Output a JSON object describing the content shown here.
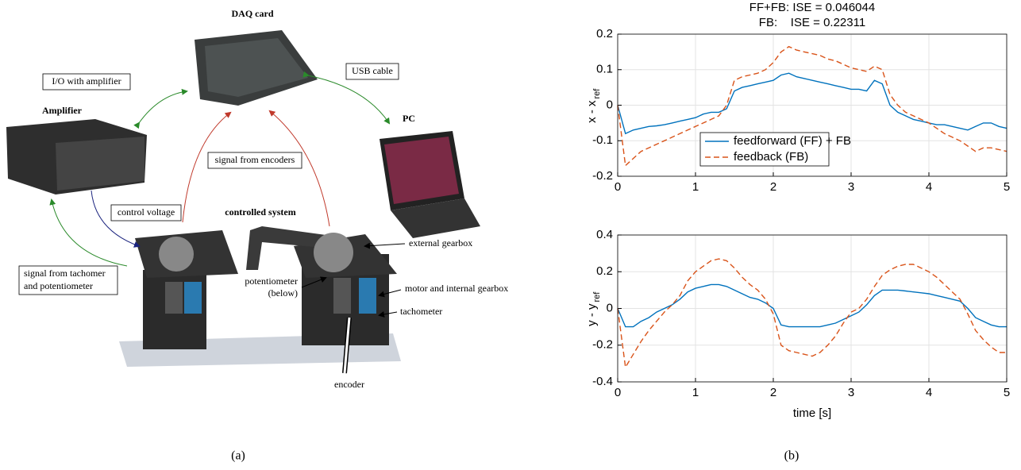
{
  "diagram": {
    "daq": "DAQ card",
    "io": "I/O with amplifier",
    "usb": "USB cable",
    "amplifier": "Amplifier",
    "pc": "PC",
    "encoders_signal": "signal from encoders",
    "control_voltage": "control voltage",
    "controlled_system": "controlled system",
    "external_gearbox": "external gearbox",
    "potentiometer": [
      "potentiometer",
      "(below)"
    ],
    "motor": "motor and internal gearbox",
    "tachometer": "tachometer",
    "tacho_signal": [
      "signal from tachomer",
      "and potentiometer"
    ],
    "encoder": "encoder"
  },
  "captions": [
    "(a)",
    "(b)"
  ],
  "chart_data": [
    {
      "type": "line",
      "title": [
        "FF+FB: ISE = 0.046044",
        "FB:    ISE = 0.22311"
      ],
      "ylabel": "x - x",
      "ylabel_subscript": "ref",
      "x": [
        0,
        0.1,
        0.2,
        0.3,
        0.4,
        0.5,
        0.6,
        0.7,
        0.8,
        0.9,
        1,
        1.1,
        1.2,
        1.3,
        1.4,
        1.5,
        1.6,
        1.7,
        1.8,
        1.9,
        2,
        2.1,
        2.2,
        2.3,
        2.4,
        2.5,
        2.6,
        2.7,
        2.8,
        2.9,
        3,
        3.1,
        3.2,
        3.3,
        3.4,
        3.5,
        3.6,
        3.7,
        3.8,
        3.9,
        4,
        4.1,
        4.2,
        4.3,
        4.4,
        4.5,
        4.6,
        4.7,
        4.8,
        4.9,
        5
      ],
      "xlim": [
        0,
        5
      ],
      "xticks": [
        0,
        1,
        2,
        3,
        4,
        5
      ],
      "ylim": [
        -0.2,
        0.2
      ],
      "yticks": [
        -0.2,
        -0.1,
        0,
        0.1,
        0.2
      ],
      "grid": true,
      "legend": "lower left",
      "series": [
        {
          "name": "feedforward (FF) + FB",
          "color": "#0072bd",
          "dash": false,
          "values": [
            0,
            -0.08,
            -0.07,
            -0.065,
            -0.06,
            -0.058,
            -0.055,
            -0.05,
            -0.045,
            -0.04,
            -0.035,
            -0.025,
            -0.02,
            -0.02,
            -0.01,
            0.04,
            0.05,
            0.055,
            0.06,
            0.065,
            0.07,
            0.085,
            0.09,
            0.08,
            0.075,
            0.07,
            0.065,
            0.06,
            0.055,
            0.05,
            0.045,
            0.045,
            0.04,
            0.07,
            0.06,
            0,
            -0.02,
            -0.03,
            -0.04,
            -0.045,
            -0.05,
            -0.055,
            -0.055,
            -0.06,
            -0.065,
            -0.07,
            -0.06,
            -0.05,
            -0.05,
            -0.06,
            -0.065
          ]
        },
        {
          "name": "feedback (FB)",
          "color": "#d95319",
          "dash": true,
          "values": [
            0,
            -0.17,
            -0.15,
            -0.13,
            -0.12,
            -0.11,
            -0.1,
            -0.09,
            -0.08,
            -0.07,
            -0.06,
            -0.05,
            -0.04,
            -0.03,
            0,
            0.07,
            0.08,
            0.085,
            0.09,
            0.1,
            0.12,
            0.15,
            0.165,
            0.155,
            0.15,
            0.145,
            0.14,
            0.13,
            0.125,
            0.115,
            0.105,
            0.1,
            0.095,
            0.11,
            0.1,
            0.03,
            0,
            -0.02,
            -0.03,
            -0.04,
            -0.05,
            -0.065,
            -0.08,
            -0.09,
            -0.1,
            -0.115,
            -0.13,
            -0.12,
            -0.12,
            -0.125,
            -0.13
          ]
        }
      ]
    },
    {
      "type": "line",
      "ylabel": "y - y",
      "ylabel_subscript": "ref",
      "xlabel": "time [s]",
      "x": [
        0,
        0.1,
        0.2,
        0.3,
        0.4,
        0.5,
        0.6,
        0.7,
        0.8,
        0.9,
        1,
        1.1,
        1.2,
        1.3,
        1.4,
        1.5,
        1.6,
        1.7,
        1.8,
        1.9,
        2,
        2.1,
        2.2,
        2.3,
        2.4,
        2.5,
        2.6,
        2.7,
        2.8,
        2.9,
        3,
        3.1,
        3.2,
        3.3,
        3.4,
        3.5,
        3.6,
        3.7,
        3.8,
        3.9,
        4,
        4.1,
        4.2,
        4.3,
        4.4,
        4.5,
        4.6,
        4.7,
        4.8,
        4.9,
        5
      ],
      "xlim": [
        0,
        5
      ],
      "xticks": [
        0,
        1,
        2,
        3,
        4,
        5
      ],
      "ylim": [
        -0.4,
        0.4
      ],
      "yticks": [
        -0.4,
        -0.2,
        0,
        0.2,
        0.4
      ],
      "grid": true,
      "series": [
        {
          "color": "#0072bd",
          "dash": false,
          "values": [
            0,
            -0.1,
            -0.1,
            -0.07,
            -0.05,
            -0.02,
            0,
            0.02,
            0.05,
            0.09,
            0.11,
            0.12,
            0.13,
            0.13,
            0.12,
            0.1,
            0.08,
            0.06,
            0.05,
            0.03,
            0,
            -0.09,
            -0.1,
            -0.1,
            -0.1,
            -0.1,
            -0.1,
            -0.09,
            -0.08,
            -0.06,
            -0.04,
            -0.02,
            0.02,
            0.07,
            0.1,
            0.1,
            0.1,
            0.095,
            0.09,
            0.085,
            0.08,
            0.07,
            0.06,
            0.05,
            0.04,
            0,
            -0.05,
            -0.07,
            -0.09,
            -0.1,
            -0.1
          ]
        },
        {
          "color": "#d95319",
          "dash": true,
          "values": [
            0,
            -0.32,
            -0.25,
            -0.18,
            -0.12,
            -0.07,
            -0.02,
            0.02,
            0.07,
            0.15,
            0.2,
            0.23,
            0.26,
            0.27,
            0.26,
            0.22,
            0.17,
            0.13,
            0.1,
            0.05,
            -0.03,
            -0.2,
            -0.23,
            -0.24,
            -0.25,
            -0.26,
            -0.24,
            -0.2,
            -0.15,
            -0.08,
            -0.02,
            0,
            0.05,
            0.12,
            0.18,
            0.21,
            0.23,
            0.24,
            0.24,
            0.22,
            0.2,
            0.17,
            0.13,
            0.09,
            0.05,
            -0.03,
            -0.12,
            -0.17,
            -0.21,
            -0.24,
            -0.24
          ]
        }
      ]
    }
  ]
}
